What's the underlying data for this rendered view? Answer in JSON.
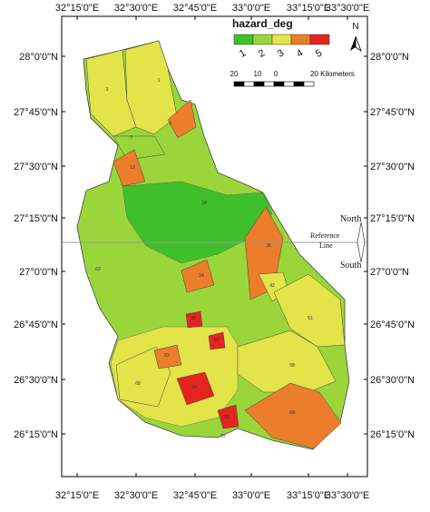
{
  "legend": {
    "title": "hazard_deg",
    "classes": [
      {
        "label": "1",
        "color": "#3fc02a"
      },
      {
        "label": "2",
        "color": "#9ad63a"
      },
      {
        "label": "3",
        "color": "#e2e44a"
      },
      {
        "label": "4",
        "color": "#ec7d2a"
      },
      {
        "label": "5",
        "color": "#e52420"
      }
    ]
  },
  "scale_bar": {
    "labels": [
      "20",
      "10",
      "0"
    ],
    "unit": "20 Kilometers"
  },
  "north_arrow": "N",
  "reference": {
    "north": "North",
    "south": "South",
    "line": [
      "Reference",
      "Line"
    ]
  },
  "lon_ticks": [
    "32°15'0\"E",
    "32°30'0\"E",
    "32°45'0\"E",
    "33°0'0\"E",
    "33°15'0\"E",
    "33°30'0\"E"
  ],
  "lat_ticks": [
    "28°0'0\"N",
    "27°45'0\"N",
    "27°30'0\"N",
    "27°15'0\"N",
    "27°0'0\"N",
    "26°45'0\"N",
    "26°30'0\"N",
    "26°15'0\"N"
  ],
  "basins": [
    {
      "id": "3",
      "hazard": 3
    },
    {
      "id": "1",
      "hazard": 3
    },
    {
      "id": "2",
      "hazard": 4
    },
    {
      "id": "7",
      "hazard": 2
    },
    {
      "id": "12",
      "hazard": 4
    },
    {
      "id": "24",
      "hazard": 1
    },
    {
      "id": "36",
      "hazard": 4
    },
    {
      "id": "34",
      "hazard": 4
    },
    {
      "id": "42",
      "hazard": 3
    },
    {
      "id": "51",
      "hazard": 3
    },
    {
      "id": "58",
      "hazard": 3
    },
    {
      "id": "62",
      "hazard": 2
    },
    {
      "id": "68",
      "hazard": 3
    },
    {
      "id": "69",
      "hazard": 4
    },
    {
      "id": "66",
      "hazard": 5
    },
    {
      "id": "64",
      "hazard": 5
    },
    {
      "id": "53",
      "hazard": 4
    },
    {
      "id": "48",
      "hazard": 5
    },
    {
      "id": "50",
      "hazard": 5
    },
    {
      "id": "70",
      "hazard": 2
    }
  ]
}
